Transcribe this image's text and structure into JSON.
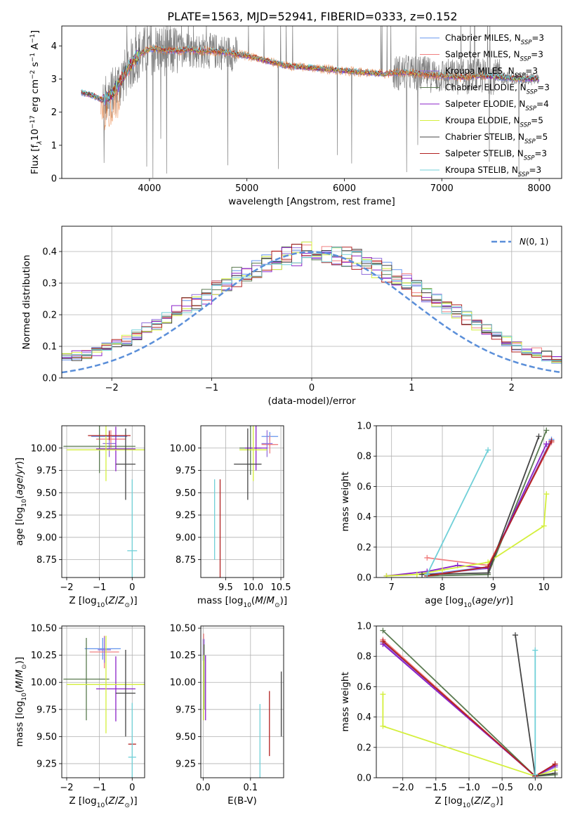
{
  "figure": {
    "title": "PLATE=1563, MJD=52941, FIBERID=0333, z=0.152"
  },
  "chart_data": [
    {
      "id": "spectrum",
      "type": "line",
      "title": "PLATE=1563, MJD=52941, FIBERID=0333, z=0.152",
      "xlabel": "wavelength [Angstrom, rest frame]",
      "ylabel": "Flux [f_λ 10^-17 erg cm^-2 s^-1 A^-1]",
      "xlim": [
        3100,
        8230
      ],
      "ylim": [
        0,
        4.6
      ],
      "xticks": [
        4000,
        5000,
        6000,
        7000,
        8000
      ],
      "yticks": [
        0,
        1,
        2,
        3,
        4
      ],
      "grid": false,
      "legend_position": "top-right",
      "continuum": {
        "x": [
          3300,
          3420,
          3520,
          3600,
          3700,
          3800,
          3900,
          4000,
          4100,
          4200,
          4300,
          4400,
          4500,
          4600,
          4800,
          5000,
          5200,
          5400,
          5600,
          5800,
          6000,
          6200,
          6400,
          6600,
          6800,
          7000,
          7200,
          7400,
          7600,
          7800,
          8000
        ],
        "y": [
          2.6,
          2.5,
          2.35,
          2.5,
          2.9,
          3.4,
          3.75,
          3.9,
          3.9,
          3.85,
          3.85,
          3.9,
          3.85,
          3.85,
          3.8,
          3.7,
          3.55,
          3.4,
          3.35,
          3.3,
          3.25,
          3.2,
          3.15,
          3.2,
          3.15,
          3.1,
          3.05,
          3.1,
          3.05,
          3.0,
          3.0
        ]
      },
      "data_noise": "grey observed spectrum with strong noise spikes between 3500 and 4800 Å and around 6600–7500 Å",
      "series": [
        {
          "name": "Chabrier MILES, N_SSP=3",
          "color": "#6495ed"
        },
        {
          "name": "Salpeter MILES, N_SSP=3",
          "color": "#f08080"
        },
        {
          "name": "Kroupa MILES, N_SSP=3",
          "color": "#9370db"
        },
        {
          "name": "Chabrier ELODIE, N_SSP=3",
          "color": "#5a7a50"
        },
        {
          "name": "Salpeter ELODIE, N_SSP=4",
          "color": "#8b22c8"
        },
        {
          "name": "Kroupa ELODIE, N_SSP=5",
          "color": "#d4ef3c"
        },
        {
          "name": "Chabrier STELIB, N_SSP=5",
          "color": "#454545"
        },
        {
          "name": "Salpeter STELIB, N_SSP=3",
          "color": "#b22222"
        },
        {
          "name": "Kroupa STELIB, N_SSP=3",
          "color": "#70d0d8"
        }
      ]
    },
    {
      "id": "residuals",
      "type": "line",
      "xlabel": "(data-model)/error",
      "ylabel": "Normed distribution",
      "xlim": [
        -2.5,
        2.5
      ],
      "ylim": [
        0,
        0.48
      ],
      "xticks": [
        -2,
        -1,
        0,
        1,
        2
      ],
      "yticks": [
        0.0,
        0.1,
        0.2,
        0.3,
        0.4
      ],
      "grid": true,
      "legend_position": "top-right",
      "legend_label": "N(0,1)",
      "bin_width": 0.1,
      "base_histogram": [
        0.04,
        0.045,
        0.05,
        0.055,
        0.06,
        0.065,
        0.07,
        0.075,
        0.085,
        0.095,
        0.105,
        0.12,
        0.135,
        0.155,
        0.17,
        0.19,
        0.21,
        0.23,
        0.24,
        0.26,
        0.28,
        0.3,
        0.32,
        0.33,
        0.35,
        0.36,
        0.375,
        0.385,
        0.39,
        0.395,
        0.4,
        0.395,
        0.39,
        0.385,
        0.375,
        0.36,
        0.35,
        0.335,
        0.32,
        0.3,
        0.28,
        0.26,
        0.24,
        0.225,
        0.21,
        0.19,
        0.17,
        0.155,
        0.135,
        0.12,
        0.1,
        0.09,
        0.08,
        0.07,
        0.06,
        0.055,
        0.05,
        0.045,
        0.04,
        0.035
      ]
    },
    {
      "id": "age-vs-z",
      "type": "scatter",
      "xlabel": "Z [log10(Z/Z⊙)]",
      "ylabel": "age  [log10(age/yr)]",
      "xlim": [
        -2.15,
        0.38
      ],
      "ylim": [
        8.55,
        10.25
      ],
      "xticks": [
        -2,
        -1,
        0
      ],
      "yticks": [
        8.75,
        9.0,
        9.25,
        9.5,
        9.75,
        10.0
      ],
      "grid": true,
      "points": [
        {
          "series": 0,
          "x": -0.7,
          "y": 10.13,
          "xerr": 0.55,
          "yerr": 0.05
        },
        {
          "series": 1,
          "x": -0.65,
          "y": 10.1,
          "xerr": 0.45,
          "yerr": 0.1
        },
        {
          "series": 2,
          "x": -0.7,
          "y": 10.05,
          "xerr": 0.2,
          "yerr": 0.15
        },
        {
          "series": 3,
          "x": -1.0,
          "y": 10.02,
          "xerr": 1.1,
          "yerr": 0.3
        },
        {
          "series": 4,
          "x": -0.5,
          "y": 9.99,
          "xerr": 0.6,
          "yerr": 0.25
        },
        {
          "series": 5,
          "x": -0.8,
          "y": 9.98,
          "xerr": 1.2,
          "yerr": 0.35
        },
        {
          "series": 6,
          "x": -0.2,
          "y": 9.82,
          "xerr": 0.3,
          "yerr": 0.4
        },
        {
          "series": 7,
          "x": -0.7,
          "y": 10.14,
          "xerr": 0.65,
          "yerr": 0.05
        },
        {
          "series": 8,
          "x": 0.0,
          "y": 8.85,
          "xerr": 0.15,
          "yerr": 0.8
        }
      ]
    },
    {
      "id": "age-vs-mass",
      "type": "scatter",
      "xlabel": "mass [log10(M/M⊙)]",
      "ylabel": "",
      "xlim": [
        9.05,
        10.55
      ],
      "ylim": [
        8.55,
        10.25
      ],
      "xticks": [
        9.5,
        10.0,
        10.5
      ],
      "yticks": [
        8.75,
        9.0,
        9.25,
        9.5,
        9.75,
        10.0
      ],
      "grid": true,
      "points": [
        {
          "series": 0,
          "x": 10.3,
          "y": 10.13,
          "xerr": 0.15,
          "yerr": 0.05
        },
        {
          "series": 1,
          "x": 10.3,
          "y": 10.04,
          "xerr": 0.15,
          "yerr": 0.1
        },
        {
          "series": 2,
          "x": 10.25,
          "y": 10.05,
          "xerr": 0.1,
          "yerr": 0.15
        },
        {
          "series": 3,
          "x": 9.95,
          "y": 10.0,
          "xerr": 0.2,
          "yerr": 0.3
        },
        {
          "series": 4,
          "x": 10.05,
          "y": 10.0,
          "xerr": 0.2,
          "yerr": 0.25
        },
        {
          "series": 5,
          "x": 10.0,
          "y": 9.98,
          "xerr": 0.25,
          "yerr": 0.35
        },
        {
          "series": 6,
          "x": 9.9,
          "y": 9.82,
          "xerr": 0.25,
          "yerr": 0.4
        },
        {
          "series": 7,
          "x": 9.4,
          "y": 9.1,
          "xerr": 0.0,
          "yerr": 0.55
        },
        {
          "series": 8,
          "x": 9.3,
          "y": 9.2,
          "xerr": 0.0,
          "yerr": 0.45
        }
      ]
    },
    {
      "id": "weight-vs-age",
      "type": "line",
      "xlabel": "age  [log10(age/yr)]",
      "ylabel": "mass weight",
      "xlim": [
        6.7,
        10.35
      ],
      "ylim": [
        0.0,
        1.0
      ],
      "xticks": [
        7,
        8,
        9,
        10
      ],
      "yticks": [
        0.0,
        0.2,
        0.4,
        0.6,
        0.8,
        1.0
      ],
      "grid": true,
      "lines": [
        {
          "series": 0,
          "x": [
            7.7,
            8.9,
            10.15
          ],
          "y": [
            0.02,
            0.07,
            0.91
          ]
        },
        {
          "series": 1,
          "x": [
            7.7,
            8.9,
            10.15
          ],
          "y": [
            0.13,
            0.08,
            0.89
          ]
        },
        {
          "series": 2,
          "x": [
            7.7,
            8.9,
            10.1
          ],
          "y": [
            0.02,
            0.06,
            0.88
          ]
        },
        {
          "series": 3,
          "x": [
            7.7,
            8.9,
            10.05
          ],
          "y": [
            0.01,
            0.02,
            0.97
          ]
        },
        {
          "series": 4,
          "x": [
            6.9,
            7.7,
            8.3,
            8.9,
            10.05
          ],
          "y": [
            0.01,
            0.04,
            0.08,
            0.06,
            0.88
          ]
        },
        {
          "series": 5,
          "x": [
            6.9,
            7.5,
            8.0,
            8.9,
            10.0,
            10.05
          ],
          "y": [
            0.01,
            0.02,
            0.05,
            0.1,
            0.34,
            0.55
          ]
        },
        {
          "series": 6,
          "x": [
            7.6,
            8.9,
            9.9
          ],
          "y": [
            0.02,
            0.03,
            0.93
          ]
        },
        {
          "series": 7,
          "x": [
            7.7,
            8.9,
            10.15
          ],
          "y": [
            0.01,
            0.07,
            0.9
          ]
        },
        {
          "series": 8,
          "x": [
            7.7,
            8.9
          ],
          "y": [
            0.02,
            0.84
          ]
        }
      ]
    },
    {
      "id": "mass-vs-z",
      "type": "scatter",
      "xlabel": "Z [log10(Z/Z⊙)]",
      "ylabel": "mass [log10(M/M⊙)]",
      "xlim": [
        -2.15,
        0.38
      ],
      "ylim": [
        9.12,
        10.52
      ],
      "xticks": [
        -2,
        -1,
        0
      ],
      "yticks": [
        9.25,
        9.5,
        9.75,
        10.0,
        10.25,
        10.5
      ],
      "grid": true,
      "points": [
        {
          "series": 0,
          "x": -0.9,
          "y": 10.31,
          "xerr": 0.55,
          "yerr": 0.1
        },
        {
          "series": 1,
          "x": -0.85,
          "y": 10.28,
          "xerr": 0.45,
          "yerr": 0.15
        },
        {
          "series": 2,
          "x": -0.85,
          "y": 10.3,
          "xerr": 0.2,
          "yerr": 0.12
        },
        {
          "series": 3,
          "x": -1.4,
          "y": 10.03,
          "xerr": 0.7,
          "yerr": 0.38
        },
        {
          "series": 4,
          "x": -0.5,
          "y": 9.94,
          "xerr": 0.6,
          "yerr": 0.3
        },
        {
          "series": 5,
          "x": -0.8,
          "y": 9.98,
          "xerr": 1.2,
          "yerr": 0.45
        },
        {
          "series": 6,
          "x": -0.2,
          "y": 9.9,
          "xerr": 0.3,
          "yerr": 0.4
        },
        {
          "series": 7,
          "x": 0.0,
          "y": 9.43,
          "xerr": 0.12,
          "yerr": 0.0
        },
        {
          "series": 8,
          "x": 0.0,
          "y": 9.31,
          "xerr": 0.12,
          "yerr": 0.5
        }
      ]
    },
    {
      "id": "mass-vs-ebv",
      "type": "scatter",
      "xlabel": "E(B-V)",
      "ylabel": "",
      "xlim": [
        -0.005,
        0.17
      ],
      "ylim": [
        9.12,
        10.52
      ],
      "xticks": [
        0.0,
        0.1
      ],
      "yticks": [
        9.25,
        9.5,
        9.75,
        10.0,
        10.25,
        10.5
      ],
      "grid": true,
      "points": [
        {
          "series": 0,
          "x": 0.0,
          "y": 10.3,
          "xerr": 0.0,
          "yerr": 0.1
        },
        {
          "series": 1,
          "x": 0.001,
          "y": 10.3,
          "xerr": 0.0,
          "yerr": 0.15
        },
        {
          "series": 2,
          "x": 0.002,
          "y": 10.3,
          "xerr": 0.0,
          "yerr": 0.1
        },
        {
          "series": 3,
          "x": 0.002,
          "y": 10.05,
          "xerr": 0.0,
          "yerr": 0.3
        },
        {
          "series": 4,
          "x": 0.005,
          "y": 9.95,
          "xerr": 0.0,
          "yerr": 0.3
        },
        {
          "series": 5,
          "x": 0.001,
          "y": 9.95,
          "xerr": 0.0,
          "yerr": 0.3
        },
        {
          "series": 6,
          "x": 0.165,
          "y": 9.8,
          "xerr": 0.0,
          "yerr": 0.3
        },
        {
          "series": 7,
          "x": 0.14,
          "y": 9.62,
          "xerr": 0.0,
          "yerr": 0.3
        },
        {
          "series": 8,
          "x": 0.12,
          "y": 9.45,
          "xerr": 0.0,
          "yerr": 0.35
        }
      ]
    },
    {
      "id": "weight-vs-z",
      "type": "line",
      "xlabel": "Z [log10(Z/Z⊙)]",
      "ylabel": "mass weight",
      "xlim": [
        -2.4,
        0.4
      ],
      "ylim": [
        0.0,
        1.0
      ],
      "xticks": [
        -2.0,
        -1.5,
        -1.0,
        -0.5,
        0.0
      ],
      "yticks": [
        0.0,
        0.2,
        0.4,
        0.6,
        0.8,
        1.0
      ],
      "grid": true,
      "lines": [
        {
          "series": 0,
          "x": [
            -2.3,
            0.0,
            0.3
          ],
          "y": [
            0.9,
            0.01,
            0.08
          ]
        },
        {
          "series": 1,
          "x": [
            -2.3,
            0.0,
            0.3
          ],
          "y": [
            0.91,
            0.01,
            0.09
          ]
        },
        {
          "series": 2,
          "x": [
            -2.3,
            0.0,
            0.3
          ],
          "y": [
            0.89,
            0.01,
            0.07
          ]
        },
        {
          "series": 3,
          "x": [
            -2.3,
            0.0,
            0.3
          ],
          "y": [
            0.97,
            0.01,
            0.02
          ]
        },
        {
          "series": 4,
          "x": [
            -2.3,
            0.0,
            0.3
          ],
          "y": [
            0.88,
            0.01,
            0.08
          ]
        },
        {
          "series": 5,
          "x": [
            -2.3,
            -2.3,
            0.0,
            0.3
          ],
          "y": [
            0.55,
            0.34,
            0.01,
            0.05
          ]
        },
        {
          "series": 6,
          "x": [
            -0.3,
            0.0,
            0.3
          ],
          "y": [
            0.94,
            0.01,
            0.03
          ]
        },
        {
          "series": 7,
          "x": [
            -2.3,
            0.0,
            0.3
          ],
          "y": [
            0.9,
            0.01,
            0.09
          ]
        },
        {
          "series": 8,
          "x": [
            0.0,
            0.0
          ],
          "y": [
            0.84,
            0.02
          ]
        }
      ]
    }
  ]
}
